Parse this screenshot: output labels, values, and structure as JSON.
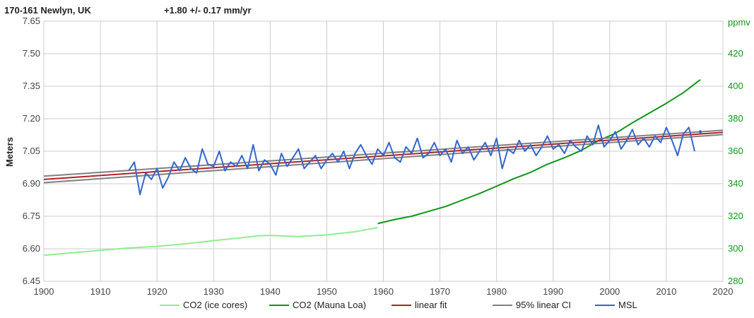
{
  "chart_data": {
    "type": "line",
    "title": "170-161 Newlyn, UK",
    "subtitle": "+1.80 +/- 0.17 mm/yr",
    "ylabel": "Meters",
    "y2label": "ppmv",
    "xlim": [
      1900,
      2020
    ],
    "ylim": [
      6.45,
      7.65
    ],
    "y2lim": [
      280,
      440
    ],
    "x_ticks": [
      1900,
      1910,
      1920,
      1930,
      1940,
      1950,
      1960,
      1970,
      1980,
      1990,
      2000,
      2010,
      2020
    ],
    "y_ticks": [
      "6.45",
      "6.60",
      "6.75",
      "6.90",
      "7.05",
      "7.20",
      "7.35",
      "7.50",
      "7.65"
    ],
    "y2_ticks": [
      "280",
      "300",
      "320",
      "340",
      "360",
      "380",
      "400",
      "420"
    ],
    "grid": true,
    "legend_position": "bottom",
    "series": [
      {
        "name": "CO2 (ice cores)",
        "color": "#90ee90",
        "axis": "right",
        "x": [
          1900,
          1905,
          1910,
          1915,
          1920,
          1925,
          1930,
          1935,
          1938,
          1940,
          1945,
          1950,
          1955,
          1959
        ],
        "values": [
          296,
          297.5,
          299,
          300.5,
          301.5,
          303,
          305,
          306.8,
          308,
          308.2,
          307.5,
          308.5,
          310.5,
          313
        ]
      },
      {
        "name": "CO2 (Mauna Loa)",
        "color": "#109618",
        "axis": "right",
        "x": [
          1959,
          1962,
          1965,
          1968,
          1971,
          1974,
          1977,
          1980,
          1983,
          1986,
          1989,
          1992,
          1995,
          1998,
          2001,
          2004,
          2007,
          2010,
          2013,
          2016
        ],
        "values": [
          315.5,
          318,
          320,
          323,
          326,
          330,
          334,
          338.5,
          343,
          347,
          352,
          356,
          360.5,
          366.5,
          371,
          377.5,
          383.5,
          389.5,
          396,
          404
        ]
      },
      {
        "name": "linear fit",
        "color": "#b22222",
        "axis": "left",
        "x": [
          1900,
          2020
        ],
        "values": [
          6.92,
          7.137
        ]
      },
      {
        "name": "95% linear CI",
        "color": "#808080",
        "axis": "left",
        "bands": [
          {
            "x": [
              1900,
              2020
            ],
            "values": [
              6.935,
              7.147
            ]
          },
          {
            "x": [
              1900,
              2020
            ],
            "values": [
              6.905,
              7.127
            ]
          }
        ]
      },
      {
        "name": "MSL",
        "color": "#3366cc",
        "axis": "left",
        "x": [
          1915,
          1916,
          1917,
          1918,
          1919,
          1920,
          1921,
          1922,
          1923,
          1924,
          1925,
          1926,
          1927,
          1928,
          1929,
          1930,
          1931,
          1932,
          1933,
          1934,
          1935,
          1936,
          1937,
          1938,
          1939,
          1940,
          1941,
          1942,
          1943,
          1944,
          1945,
          1946,
          1947,
          1948,
          1949,
          1950,
          1951,
          1952,
          1953,
          1954,
          1955,
          1956,
          1957,
          1958,
          1959,
          1960,
          1961,
          1962,
          1963,
          1964,
          1965,
          1966,
          1967,
          1968,
          1969,
          1970,
          1971,
          1972,
          1973,
          1974,
          1975,
          1976,
          1977,
          1978,
          1979,
          1980,
          1981,
          1982,
          1983,
          1984,
          1985,
          1986,
          1987,
          1988,
          1989,
          1990,
          1991,
          1992,
          1993,
          1994,
          1995,
          1996,
          1997,
          1998,
          1999,
          2000,
          2001,
          2002,
          2003,
          2004,
          2005,
          2006,
          2007,
          2008,
          2009,
          2010,
          2011,
          2012,
          2013,
          2014,
          2015
        ],
        "values": [
          6.96,
          7.0,
          6.85,
          6.95,
          6.92,
          6.97,
          6.88,
          6.93,
          7.0,
          6.96,
          7.02,
          6.97,
          6.95,
          7.06,
          6.99,
          6.98,
          7.05,
          6.96,
          7.0,
          6.98,
          7.03,
          6.97,
          7.08,
          6.96,
          7.01,
          6.99,
          6.94,
          7.04,
          6.98,
          7.02,
          7.06,
          6.97,
          7.0,
          7.03,
          6.97,
          7.01,
          7.04,
          7.0,
          7.05,
          6.97,
          7.04,
          7.08,
          7.03,
          6.99,
          7.06,
          7.03,
          7.09,
          7.02,
          7.0,
          7.07,
          7.04,
          7.11,
          7.02,
          7.04,
          7.09,
          7.03,
          7.06,
          7.0,
          7.1,
          7.04,
          7.07,
          7.01,
          7.05,
          7.09,
          7.03,
          7.11,
          6.97,
          7.06,
          7.04,
          7.1,
          7.05,
          7.08,
          7.03,
          7.07,
          7.12,
          7.06,
          7.08,
          7.04,
          7.1,
          7.07,
          7.05,
          7.12,
          7.08,
          7.17,
          7.07,
          7.1,
          7.14,
          7.06,
          7.1,
          7.15,
          7.08,
          7.11,
          7.07,
          7.12,
          7.09,
          7.16,
          7.1,
          7.03,
          7.13,
          7.16,
          7.05
        ],
        "extra_point": {
          "x": 2016,
          "value": 7.14
        }
      }
    ]
  },
  "legend": [
    {
      "label": "CO2 (ice cores)",
      "color": "#90ee90"
    },
    {
      "label": "CO2 (Mauna Loa)",
      "color": "#109618"
    },
    {
      "label": "linear fit",
      "color": "#b22222"
    },
    {
      "label": "95% linear CI",
      "color": "#808080"
    },
    {
      "label": "MSL",
      "color": "#3366cc"
    }
  ]
}
